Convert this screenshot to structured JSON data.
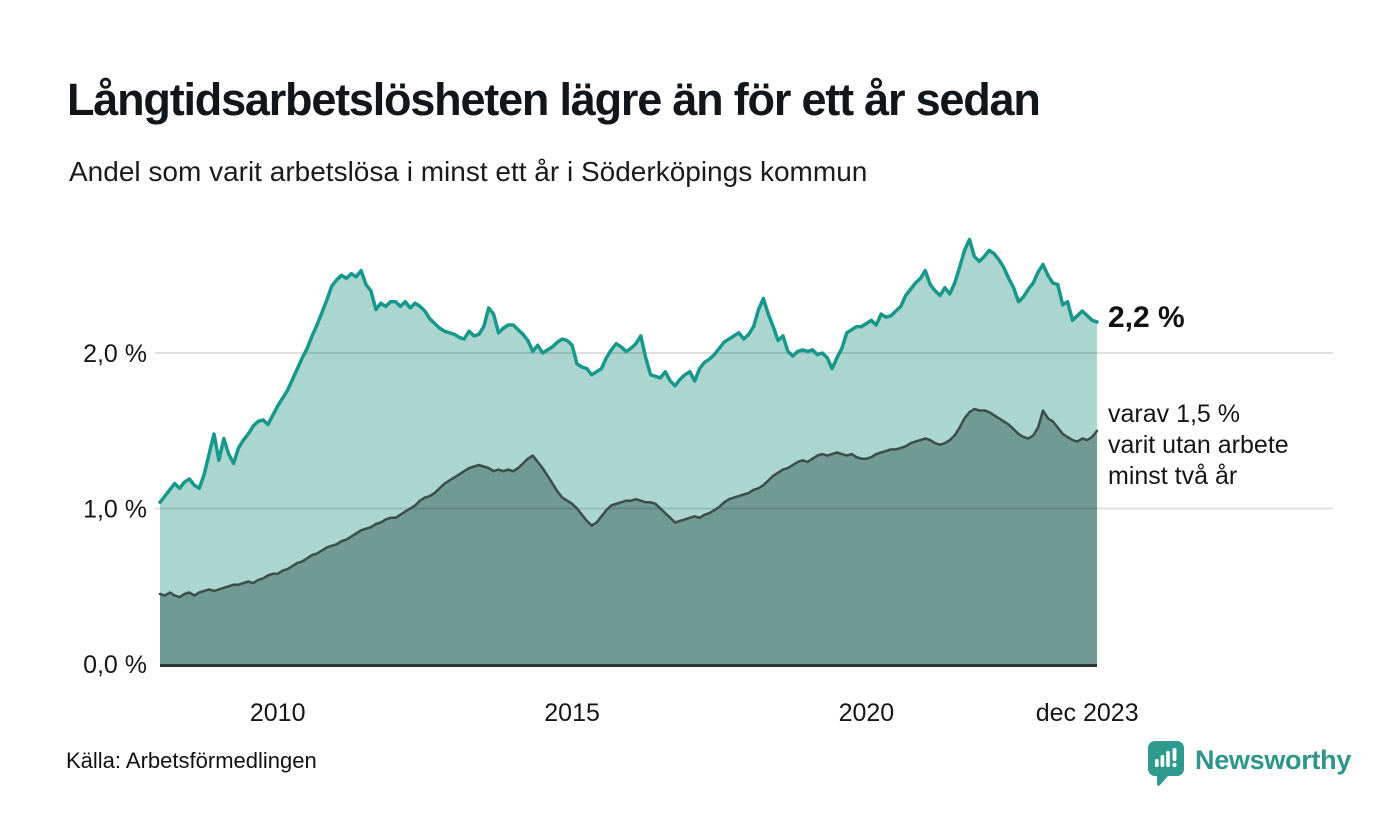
{
  "header": {
    "title": "Långtidsarbetslösheten lägre än för ett år sedan",
    "subtitle": "Andel som varit arbetslösa i minst ett år i Söderköpings kommun"
  },
  "footer": {
    "source": "Källa: Arbetsförmedlingen",
    "brand": "Newsworthy"
  },
  "chart_data": {
    "type": "area",
    "title": "Långtidsarbetslösheten lägre än för ett år sedan",
    "subtitle": "Andel som varit arbetslösa i minst ett år i Söderköpings kommun",
    "x_start": "2008-01",
    "x_end": "2023-12",
    "x_unit": "month",
    "ylim": [
      0,
      2.8
    ],
    "grid": "horizontal",
    "legend": "none",
    "y_ticks": [
      {
        "label": "0,0 %",
        "value": 0
      },
      {
        "label": "1,0 %",
        "value": 1
      },
      {
        "label": "2,0 %",
        "value": 2
      }
    ],
    "x_ticks": [
      {
        "label": "2010",
        "t": 2010
      },
      {
        "label": "2015",
        "t": 2015
      },
      {
        "label": "2020",
        "t": 2020
      },
      {
        "label": "dec 2023",
        "t": 2023.75
      }
    ],
    "annotations": {
      "latest_total": "2,2 %",
      "latest_sub": "varav 1,5 %\nvarit utan arbete\nminst två år"
    },
    "colors": {
      "line_total": "#18988b",
      "fill_total": "#abd6d0",
      "line_sub": "#3c4e49",
      "fill_sub": "#719a92",
      "gridline": "rgba(0,0,0,0.12)",
      "baseline": "#2b3531",
      "text": "#161616",
      "brand_teal": "#2f968c"
    },
    "series": [
      {
        "name": "Andel arbetslösa minst ett år",
        "latest_value": 2.2,
        "values": [
          1.04,
          1.08,
          1.12,
          1.16,
          1.13,
          1.17,
          1.19,
          1.15,
          1.13,
          1.22,
          1.35,
          1.48,
          1.31,
          1.45,
          1.35,
          1.29,
          1.39,
          1.44,
          1.48,
          1.53,
          1.56,
          1.57,
          1.54,
          1.6,
          1.66,
          1.71,
          1.76,
          1.83,
          1.9,
          1.97,
          2.03,
          2.11,
          2.18,
          2.26,
          2.34,
          2.43,
          2.47,
          2.5,
          2.48,
          2.51,
          2.49,
          2.53,
          2.44,
          2.4,
          2.28,
          2.32,
          2.3,
          2.33,
          2.33,
          2.3,
          2.33,
          2.29,
          2.32,
          2.3,
          2.27,
          2.22,
          2.19,
          2.16,
          2.14,
          2.13,
          2.12,
          2.1,
          2.09,
          2.14,
          2.11,
          2.12,
          2.17,
          2.29,
          2.25,
          2.13,
          2.16,
          2.18,
          2.18,
          2.15,
          2.12,
          2.08,
          2.01,
          2.05,
          2.0,
          2.02,
          2.04,
          2.07,
          2.09,
          2.08,
          2.05,
          1.93,
          1.91,
          1.9,
          1.86,
          1.88,
          1.9,
          1.97,
          2.02,
          2.06,
          2.04,
          2.01,
          2.03,
          2.06,
          2.11,
          1.97,
          1.86,
          1.85,
          1.84,
          1.88,
          1.82,
          1.79,
          1.83,
          1.86,
          1.88,
          1.82,
          1.9,
          1.94,
          1.96,
          1.99,
          2.03,
          2.07,
          2.09,
          2.11,
          2.13,
          2.09,
          2.12,
          2.17,
          2.28,
          2.35,
          2.25,
          2.17,
          2.08,
          2.11,
          2.01,
          1.98,
          2.01,
          2.02,
          2.01,
          2.02,
          1.99,
          2.0,
          1.97,
          1.9,
          1.97,
          2.03,
          2.13,
          2.15,
          2.17,
          2.17,
          2.19,
          2.21,
          2.18,
          2.25,
          2.23,
          2.24,
          2.27,
          2.3,
          2.37,
          2.41,
          2.45,
          2.48,
          2.53,
          2.44,
          2.4,
          2.37,
          2.42,
          2.38,
          2.45,
          2.55,
          2.66,
          2.73,
          2.62,
          2.59,
          2.62,
          2.66,
          2.64,
          2.6,
          2.55,
          2.48,
          2.42,
          2.33,
          2.36,
          2.41,
          2.45,
          2.52,
          2.57,
          2.5,
          2.45,
          2.44,
          2.31,
          2.33,
          2.21,
          2.24,
          2.27,
          2.24,
          2.21,
          2.2
        ]
      },
      {
        "name": "varav arbetslösa minst två år",
        "latest_value": 1.5,
        "values": [
          0.45,
          0.44,
          0.46,
          0.44,
          0.43,
          0.45,
          0.46,
          0.44,
          0.46,
          0.47,
          0.48,
          0.47,
          0.48,
          0.49,
          0.5,
          0.51,
          0.51,
          0.52,
          0.53,
          0.52,
          0.54,
          0.55,
          0.57,
          0.58,
          0.58,
          0.6,
          0.61,
          0.63,
          0.65,
          0.66,
          0.68,
          0.7,
          0.71,
          0.73,
          0.75,
          0.76,
          0.77,
          0.79,
          0.8,
          0.82,
          0.84,
          0.86,
          0.87,
          0.88,
          0.9,
          0.91,
          0.93,
          0.94,
          0.94,
          0.96,
          0.98,
          1.0,
          1.02,
          1.05,
          1.07,
          1.08,
          1.1,
          1.13,
          1.16,
          1.18,
          1.2,
          1.22,
          1.24,
          1.26,
          1.27,
          1.28,
          1.27,
          1.26,
          1.24,
          1.25,
          1.24,
          1.25,
          1.24,
          1.26,
          1.29,
          1.32,
          1.34,
          1.3,
          1.26,
          1.21,
          1.16,
          1.11,
          1.07,
          1.05,
          1.03,
          1.0,
          0.96,
          0.92,
          0.89,
          0.91,
          0.95,
          0.99,
          1.02,
          1.03,
          1.04,
          1.05,
          1.05,
          1.06,
          1.05,
          1.04,
          1.04,
          1.03,
          1.0,
          0.97,
          0.94,
          0.91,
          0.92,
          0.93,
          0.94,
          0.95,
          0.94,
          0.96,
          0.97,
          0.99,
          1.01,
          1.04,
          1.06,
          1.07,
          1.08,
          1.09,
          1.1,
          1.12,
          1.13,
          1.15,
          1.18,
          1.21,
          1.23,
          1.25,
          1.26,
          1.28,
          1.3,
          1.31,
          1.3,
          1.32,
          1.34,
          1.35,
          1.34,
          1.35,
          1.36,
          1.35,
          1.34,
          1.35,
          1.33,
          1.32,
          1.32,
          1.33,
          1.35,
          1.36,
          1.37,
          1.38,
          1.38,
          1.39,
          1.4,
          1.42,
          1.43,
          1.44,
          1.45,
          1.44,
          1.42,
          1.41,
          1.42,
          1.44,
          1.47,
          1.52,
          1.58,
          1.62,
          1.64,
          1.63,
          1.63,
          1.62,
          1.6,
          1.58,
          1.56,
          1.54,
          1.51,
          1.48,
          1.46,
          1.45,
          1.47,
          1.52,
          1.63,
          1.58,
          1.56,
          1.52,
          1.48,
          1.46,
          1.44,
          1.43,
          1.45,
          1.44,
          1.46,
          1.5
        ]
      }
    ]
  }
}
